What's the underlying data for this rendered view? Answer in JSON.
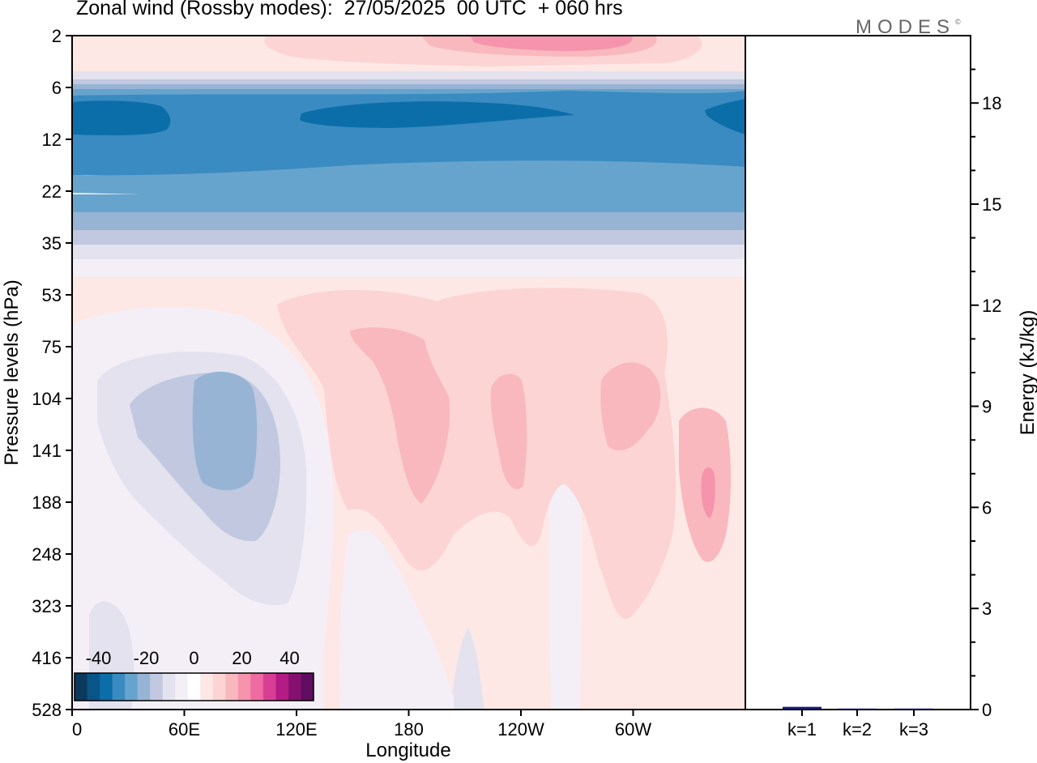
{
  "title": "Zonal wind (Rossby modes):  27/05/2025  00 UTC  + 060 hrs",
  "logo": {
    "text": "MODES",
    "mark": "©"
  },
  "chart_data": [
    {
      "type": "heatmap",
      "variable": "Zonal wind",
      "xlabel": "Longitude",
      "ylabel": "Pressure levels (hPa)",
      "x_ticks": [
        "0",
        "60E",
        "120E",
        "180",
        "120W",
        "60W"
      ],
      "y_ticks": [
        "2",
        "6",
        "12",
        "22",
        "35",
        "53",
        "75",
        "104",
        "141",
        "188",
        "248",
        "323",
        "416",
        "528"
      ],
      "colorbar": {
        "labels": [
          "-40",
          "-20",
          "0",
          "20",
          "40"
        ],
        "range": [
          -50,
          50
        ],
        "colors": [
          "#0b3a5c",
          "#0a5588",
          "#0b6ea9",
          "#3a8bc1",
          "#67a4cd",
          "#97b4d4",
          "#c1c8e0",
          "#e3e2ee",
          "#f4eff7",
          "#ffffff",
          "#fde8e6",
          "#fbd4d3",
          "#f9b8bd",
          "#f594ac",
          "#ef6aa2",
          "#d93e95",
          "#b41b85",
          "#86106f",
          "#5e0d60"
        ]
      },
      "features": [
        {
          "label": "stratospheric easterly jet",
          "pressure_range_hPa": [
            6,
            35
          ],
          "value": -35
        },
        {
          "label": "easterly core",
          "pressure_hPa": 9,
          "value": -45
        },
        {
          "label": "upper westerlies",
          "pressure_hPa": 2,
          "value": 20
        },
        {
          "label": "tropospheric westerlies",
          "pressure_range_hPa": [
            53,
            323
          ],
          "value": 15
        },
        {
          "label": "tropospheric easterlies",
          "longitude": "60E",
          "pressure_hPa": 120,
          "value": -25
        }
      ]
    },
    {
      "type": "bar",
      "categories": [
        "k=1",
        "k=2",
        "k=3"
      ],
      "values": [
        0.08,
        0.03,
        0.03
      ],
      "ylabel": "Energy (kJ/kg)",
      "ylim": [
        0,
        20
      ],
      "y_ticks": [
        "0",
        "3",
        "6",
        "9",
        "12",
        "15",
        "18"
      ],
      "bar_color": "#1a1a6e"
    }
  ]
}
